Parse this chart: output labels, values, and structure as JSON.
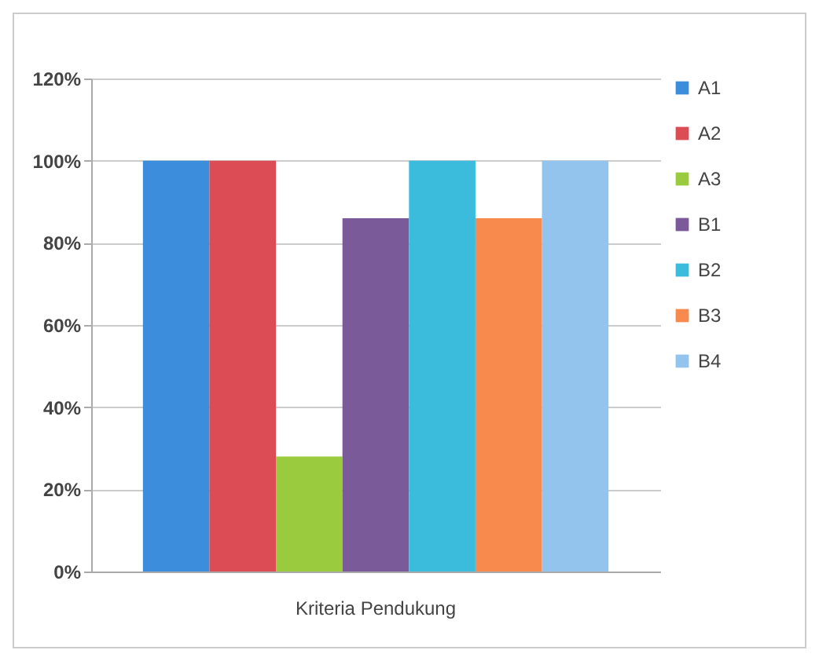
{
  "chart_data": {
    "type": "bar",
    "categories": [
      "Kriteria Pendukung"
    ],
    "series": [
      {
        "name": "A1",
        "color": "#3c8ddc",
        "values": [
          100
        ]
      },
      {
        "name": "A2",
        "color": "#dc4c55",
        "values": [
          100
        ]
      },
      {
        "name": "A3",
        "color": "#9acb3f",
        "values": [
          28
        ]
      },
      {
        "name": "B1",
        "color": "#7b5a9a",
        "values": [
          86
        ]
      },
      {
        "name": "B2",
        "color": "#3bbcdc",
        "values": [
          100
        ]
      },
      {
        "name": "B3",
        "color": "#f98a4e",
        "values": [
          86
        ]
      },
      {
        "name": "B4",
        "color": "#92c4ee",
        "values": [
          100
        ]
      }
    ],
    "ylim": [
      0,
      120
    ],
    "yticks": [
      {
        "value": 0,
        "label": "0%"
      },
      {
        "value": 20,
        "label": "20%"
      },
      {
        "value": 40,
        "label": "40%"
      },
      {
        "value": 60,
        "label": "60%"
      },
      {
        "value": 80,
        "label": "80%"
      },
      {
        "value": 100,
        "label": "100%"
      },
      {
        "value": 120,
        "label": "120%"
      }
    ],
    "grid": "y",
    "legend": "right"
  }
}
